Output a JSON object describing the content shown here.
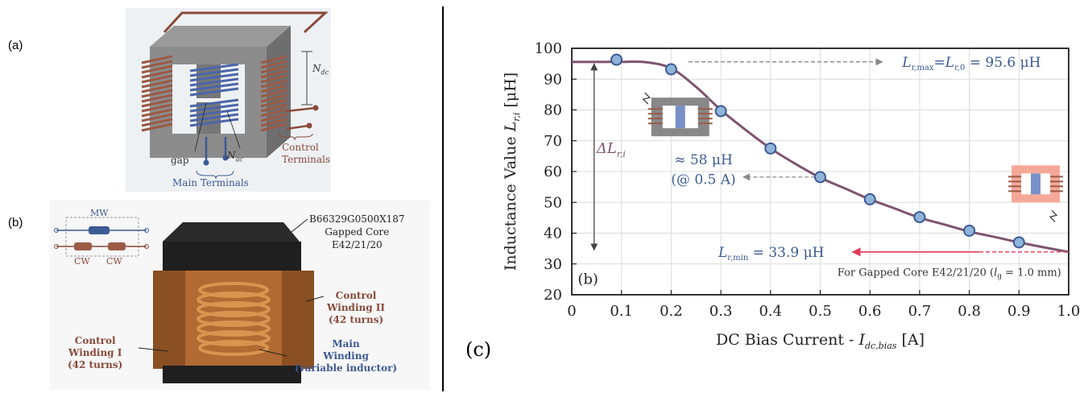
{
  "panel_labels": {
    "a": "(a)",
    "b": "(b)",
    "c": "(c)"
  },
  "panel_a": {
    "n_dc": "N",
    "n_dc_sub": "dc",
    "n_ac": "N",
    "n_ac_sub": "ac",
    "gap": "gap",
    "main_terminals": "Main Terminals",
    "control_terminals_1": "Control",
    "control_terminals_2": "Terminals"
  },
  "panel_b": {
    "mw": "MW",
    "cw1": "CW",
    "cw2": "CW",
    "core_part": "B66329G0500X187",
    "core_desc": "Gapped Core",
    "core_size": "E42/21/20",
    "cw2_title": "Control",
    "cw2_name": "Winding II",
    "cw2_turns": "(42 turns)",
    "cw1_title": "Control",
    "cw1_name": "Winding I",
    "cw1_turns": "(42 turns)",
    "mw_title": "Main",
    "mw_name": "Winding",
    "mw_desc": "(variable inductor)"
  },
  "panel_c": {
    "inset_label": "(b)",
    "annot_max_lhs": "L",
    "annot_max_sub": "r,max",
    "annot_max_mid": "=L",
    "annot_max_sub2": "r,0",
    "annot_max_rhs": " = 95.6 μH",
    "annot_mid_1": "≈ 58 μH",
    "annot_mid_2": "(@ 0.5 A)",
    "annot_min_lhs": "L",
    "annot_min_sub": "r,min",
    "annot_min_rhs": " = 33.9 μH",
    "annot_delta": "ΔL",
    "annot_delta_sub": "r,i",
    "footnote": "For Gapped Core E42/21/20 (",
    "footnote_l": "l",
    "footnote_lsub": "g",
    "footnote_end": " = 1.0 mm)"
  },
  "chart_data": {
    "type": "line",
    "xlabel": "DC Bias Current - I_dc,bias [A]",
    "ylabel": "Inductance Value L_r,i [μH]",
    "xlim": [
      0,
      1.0
    ],
    "ylim": [
      20,
      100
    ],
    "xticks": [
      "0",
      "0.1",
      "0.2",
      "0.3",
      "0.4",
      "0.5",
      "0.6",
      "0.7",
      "0.8",
      "0.9",
      "1.0"
    ],
    "yticks": [
      "20",
      "30",
      "40",
      "50",
      "60",
      "70",
      "80",
      "90",
      "100"
    ],
    "grid": true,
    "curve": {
      "x": [
        0,
        0.05,
        0.1,
        0.15,
        0.2,
        0.25,
        0.3,
        0.35,
        0.4,
        0.45,
        0.5,
        0.55,
        0.6,
        0.65,
        0.7,
        0.75,
        0.8,
        0.85,
        0.9,
        0.95,
        1.0
      ],
      "y": [
        95.6,
        95.6,
        95.6,
        95.5,
        93.5,
        87.5,
        80.0,
        73.5,
        67.5,
        62.5,
        58.0,
        54.5,
        51.0,
        48.0,
        45.0,
        42.8,
        40.5,
        38.8,
        37.0,
        35.4,
        33.9
      ]
    },
    "markers": {
      "x": [
        0.09,
        0.2,
        0.3,
        0.4,
        0.5,
        0.6,
        0.7,
        0.8,
        0.9
      ],
      "y": [
        96.3,
        93.2,
        79.6,
        67.5,
        58.2,
        51.0,
        45.2,
        40.8,
        37.0
      ]
    },
    "colors": {
      "curve": "#7f5470",
      "marker_fill": "#8fb4d8",
      "marker_stroke": "#3c5a94",
      "annotation": "#3c5a94",
      "accent_red": "#e03a5a",
      "delta": "#7f5470"
    }
  }
}
